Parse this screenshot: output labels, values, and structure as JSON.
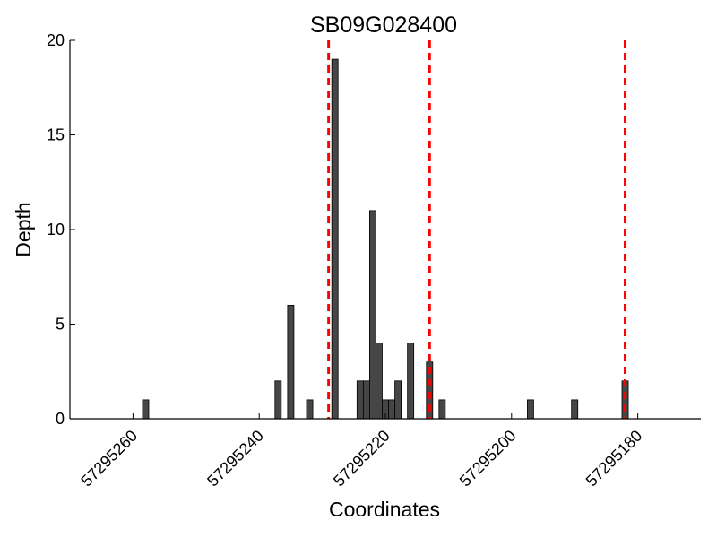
{
  "chart_data": {
    "type": "bar",
    "title": "SB09G028400",
    "xlabel": "Coordinates",
    "ylabel": "Depth",
    "x_reversed": true,
    "xlim": [
      57295270,
      57295170
    ],
    "ylim": [
      0,
      20
    ],
    "xticks": [
      57295260,
      57295240,
      57295220,
      57295200,
      57295180
    ],
    "yticks": [
      0,
      5,
      10,
      15,
      20
    ],
    "bar_color": "#464646",
    "bar_edge_color": "#000000",
    "marker_color": "#ff0000",
    "marker_lines_x": [
      57295229,
      57295213,
      57295182
    ],
    "points": [
      {
        "x": 57295258,
        "y": 1
      },
      {
        "x": 57295237,
        "y": 2
      },
      {
        "x": 57295235,
        "y": 6
      },
      {
        "x": 57295232,
        "y": 1
      },
      {
        "x": 57295228,
        "y": 19
      },
      {
        "x": 57295224,
        "y": 2
      },
      {
        "x": 57295223,
        "y": 2
      },
      {
        "x": 57295222,
        "y": 11
      },
      {
        "x": 57295221,
        "y": 4
      },
      {
        "x": 57295220,
        "y": 1
      },
      {
        "x": 57295219,
        "y": 1
      },
      {
        "x": 57295218,
        "y": 2
      },
      {
        "x": 57295216,
        "y": 4
      },
      {
        "x": 57295213,
        "y": 3
      },
      {
        "x": 57295211,
        "y": 1
      },
      {
        "x": 57295197,
        "y": 1
      },
      {
        "x": 57295190,
        "y": 1
      },
      {
        "x": 57295182,
        "y": 2
      }
    ],
    "grid": false,
    "legend": "none"
  }
}
